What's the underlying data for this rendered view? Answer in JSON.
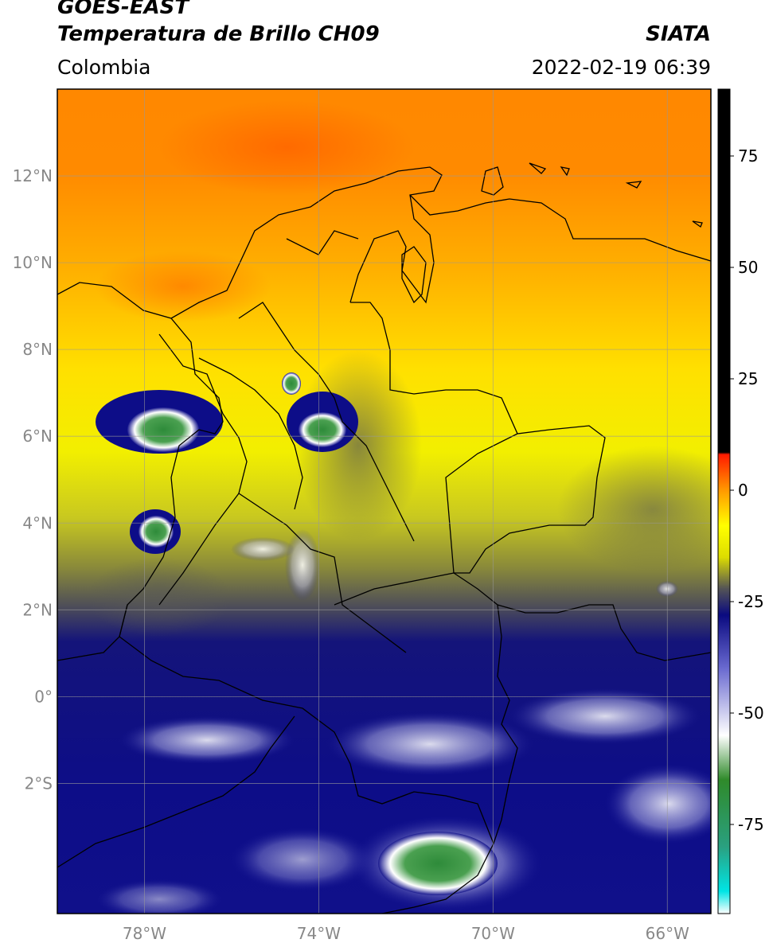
{
  "header": {
    "satellite": "GOES-EAST",
    "product": "Temperatura de Brillo CH09",
    "agency": "SIATA",
    "region": "Colombia",
    "datetime": "2022-02-19 06:39"
  },
  "map": {
    "lon_range": [
      -80,
      -65
    ],
    "lat_range": [
      -5,
      14
    ],
    "lat_ticks": [
      {
        "value": 12,
        "label": "12°N"
      },
      {
        "value": 10,
        "label": "10°N"
      },
      {
        "value": 8,
        "label": "8°N"
      },
      {
        "value": 6,
        "label": "6°N"
      },
      {
        "value": 4,
        "label": "4°N"
      },
      {
        "value": 2,
        "label": "2°N"
      },
      {
        "value": 0,
        "label": "0°"
      },
      {
        "value": -2,
        "label": "2°S"
      }
    ],
    "lon_ticks": [
      {
        "value": -78,
        "label": "78°W"
      },
      {
        "value": -74,
        "label": "74°W"
      },
      {
        "value": -70,
        "label": "70°W"
      },
      {
        "value": -66,
        "label": "66°W"
      }
    ],
    "gridlines": true,
    "colors": {
      "warm": "#ff8c00",
      "mild": "#ffee00",
      "cool": "#6d6d4a",
      "cold": "#0a0a8a",
      "very_cold": "#ffffff",
      "coldest": "#2e8b3a",
      "border": "#000000"
    }
  },
  "colorbar": {
    "range": [
      -95,
      90
    ],
    "ticks": [
      {
        "value": 75,
        "label": "75"
      },
      {
        "value": 50,
        "label": "50"
      },
      {
        "value": 25,
        "label": "25"
      },
      {
        "value": 0,
        "label": "0"
      },
      {
        "value": -25,
        "label": "-25"
      },
      {
        "value": -50,
        "label": "-50"
      },
      {
        "value": -75,
        "label": "-75"
      }
    ],
    "stops": [
      {
        "value": -95,
        "color": "#ffffff"
      },
      {
        "value": -90,
        "color": "#00e5e5"
      },
      {
        "value": -80,
        "color": "#2aa080"
      },
      {
        "value": -65,
        "color": "#2f8a2a"
      },
      {
        "value": -55,
        "color": "#ffffff"
      },
      {
        "value": -40,
        "color": "#6a6ad0"
      },
      {
        "value": -28,
        "color": "#0a0a80"
      },
      {
        "value": -22,
        "color": "#555555"
      },
      {
        "value": -15,
        "color": "#dddd00"
      },
      {
        "value": -8,
        "color": "#ffff00"
      },
      {
        "value": 0,
        "color": "#ff9900"
      },
      {
        "value": 8,
        "color": "#ff1a00"
      },
      {
        "value": 8.5,
        "color": "#000000"
      },
      {
        "value": 90,
        "color": "#000000"
      }
    ]
  }
}
